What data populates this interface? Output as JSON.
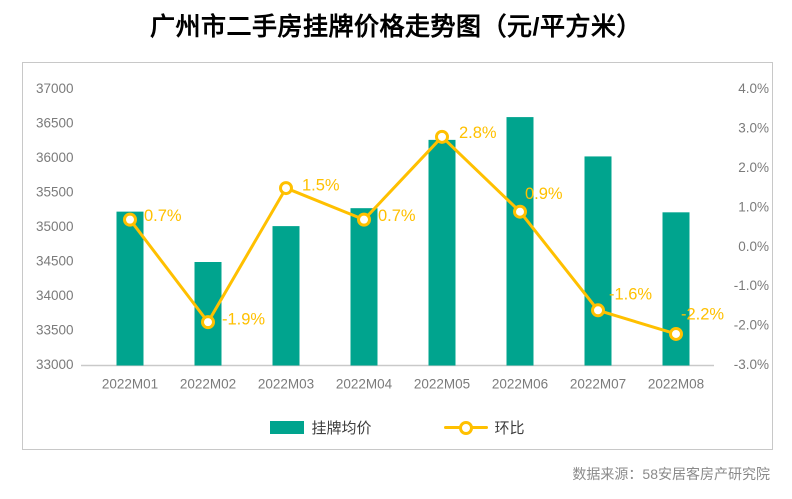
{
  "title": "广州市二手房挂牌价格走势图（元/平方米）",
  "source_note": "数据来源：58安居客房产研究院",
  "colors": {
    "bar": "#00A48E",
    "line": "#FFC000",
    "axis_text": "#7B7B7B",
    "axis_line": "#C9C9C9",
    "legend_text": "#3D3D3D",
    "source_text": "#8A8A8A",
    "border": "#C8C8C8",
    "title_text": "#000000"
  },
  "legend": {
    "bar_label": "挂牌均价",
    "line_label": "环比"
  },
  "chart_data": {
    "type": "bar+line",
    "title": "广州市二手房挂牌价格走势图（元/平方米）",
    "categories": [
      "2022M01",
      "2022M02",
      "2022M03",
      "2022M04",
      "2022M05",
      "2022M06",
      "2022M07",
      "2022M08"
    ],
    "series": [
      {
        "name": "挂牌均价",
        "type": "bar",
        "axis": "left",
        "values": [
          35230,
          34500,
          35020,
          35280,
          36270,
          36600,
          36030,
          35220
        ]
      },
      {
        "name": "环比",
        "type": "line",
        "axis": "right",
        "values": [
          0.7,
          -1.9,
          1.5,
          0.7,
          2.8,
          0.9,
          -1.6,
          -2.2
        ],
        "labels": [
          "0.7%",
          "-1.9%",
          "1.5%",
          "0.7%",
          "2.8%",
          "0.9%",
          "-1.6%",
          "-2.2%"
        ]
      }
    ],
    "left_axis": {
      "min": 33000,
      "max": 37000,
      "ticks": [
        "37000",
        "36500",
        "36000",
        "35500",
        "35000",
        "34500",
        "34000",
        "33500",
        "33000"
      ]
    },
    "right_axis": {
      "min": -3.0,
      "max": 4.0,
      "ticks": [
        "4.0%",
        "3.0%",
        "2.0%",
        "1.0%",
        "0.0%",
        "-1.0%",
        "-2.0%",
        "-3.0%"
      ]
    },
    "grid": false,
    "legend_position": "bottom"
  }
}
